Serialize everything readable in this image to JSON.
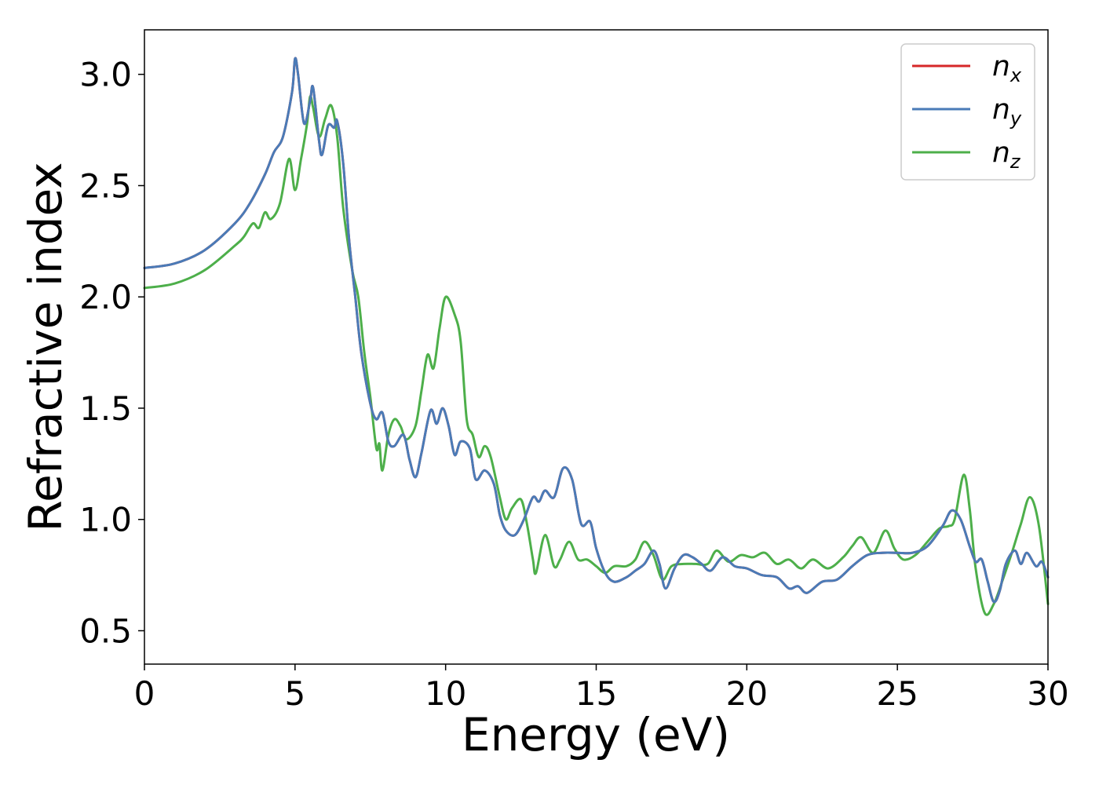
{
  "chart_data": {
    "type": "line",
    "xlabel": "Energy (eV)",
    "ylabel": "Refractive index",
    "xlim": [
      0,
      30
    ],
    "ylim": [
      0.35,
      3.2
    ],
    "xticks": [
      {
        "value": 0,
        "label": "0"
      },
      {
        "value": 5,
        "label": "5"
      },
      {
        "value": 10,
        "label": "10"
      },
      {
        "value": 15,
        "label": "15"
      },
      {
        "value": 20,
        "label": "20"
      },
      {
        "value": 25,
        "label": "25"
      },
      {
        "value": 30,
        "label": "30"
      }
    ],
    "yticks": [
      {
        "value": 0.5,
        "label": "0.5"
      },
      {
        "value": 1.0,
        "label": "1.0"
      },
      {
        "value": 1.5,
        "label": "1.5"
      },
      {
        "value": 2.0,
        "label": "2.0"
      },
      {
        "value": 2.5,
        "label": "2.5"
      },
      {
        "value": 3.0,
        "label": "3.0"
      }
    ],
    "grid": false,
    "legend_position": "top-right",
    "series": [
      {
        "name": "n_x",
        "label_main": "n",
        "label_sub": "x",
        "color": "#d62728",
        "points": [
          [
            0,
            2.13
          ],
          [
            1,
            2.15
          ],
          [
            2,
            2.21
          ],
          [
            3,
            2.33
          ],
          [
            3.5,
            2.42
          ],
          [
            4,
            2.55
          ],
          [
            4.3,
            2.65
          ],
          [
            4.6,
            2.72
          ],
          [
            4.9,
            2.92
          ],
          [
            5.0,
            3.07
          ],
          [
            5.1,
            3.0
          ],
          [
            5.3,
            2.78
          ],
          [
            5.5,
            2.88
          ],
          [
            5.6,
            2.94
          ],
          [
            5.8,
            2.7
          ],
          [
            5.9,
            2.64
          ],
          [
            6.1,
            2.77
          ],
          [
            6.3,
            2.76
          ],
          [
            6.4,
            2.79
          ],
          [
            6.6,
            2.6
          ],
          [
            6.8,
            2.25
          ],
          [
            7.0,
            2.0
          ],
          [
            7.2,
            1.75
          ],
          [
            7.5,
            1.52
          ],
          [
            7.7,
            1.45
          ],
          [
            7.9,
            1.48
          ],
          [
            8.1,
            1.35
          ],
          [
            8.3,
            1.33
          ],
          [
            8.6,
            1.38
          ],
          [
            8.8,
            1.27
          ],
          [
            9.0,
            1.19
          ],
          [
            9.2,
            1.3
          ],
          [
            9.5,
            1.49
          ],
          [
            9.7,
            1.43
          ],
          [
            9.9,
            1.5
          ],
          [
            10.1,
            1.42
          ],
          [
            10.3,
            1.29
          ],
          [
            10.5,
            1.35
          ],
          [
            10.8,
            1.32
          ],
          [
            11.0,
            1.18
          ],
          [
            11.3,
            1.22
          ],
          [
            11.6,
            1.16
          ],
          [
            11.8,
            1.02
          ],
          [
            12.0,
            0.95
          ],
          [
            12.3,
            0.93
          ],
          [
            12.6,
            1.0
          ],
          [
            12.9,
            1.1
          ],
          [
            13.1,
            1.08
          ],
          [
            13.3,
            1.13
          ],
          [
            13.6,
            1.1
          ],
          [
            13.9,
            1.23
          ],
          [
            14.2,
            1.18
          ],
          [
            14.5,
            0.98
          ],
          [
            14.8,
            0.99
          ],
          [
            15.0,
            0.87
          ],
          [
            15.3,
            0.76
          ],
          [
            15.6,
            0.72
          ],
          [
            16.0,
            0.74
          ],
          [
            16.3,
            0.77
          ],
          [
            16.6,
            0.8
          ],
          [
            16.9,
            0.86
          ],
          [
            17.1,
            0.8
          ],
          [
            17.3,
            0.69
          ],
          [
            17.6,
            0.78
          ],
          [
            17.9,
            0.84
          ],
          [
            18.2,
            0.83
          ],
          [
            18.5,
            0.8
          ],
          [
            18.8,
            0.77
          ],
          [
            19.2,
            0.83
          ],
          [
            19.6,
            0.79
          ],
          [
            20.0,
            0.78
          ],
          [
            20.5,
            0.75
          ],
          [
            21.0,
            0.74
          ],
          [
            21.4,
            0.69
          ],
          [
            21.7,
            0.7
          ],
          [
            22.0,
            0.67
          ],
          [
            22.5,
            0.72
          ],
          [
            23.0,
            0.73
          ],
          [
            23.5,
            0.79
          ],
          [
            24.0,
            0.84
          ],
          [
            24.5,
            0.85
          ],
          [
            25.0,
            0.85
          ],
          [
            25.5,
            0.85
          ],
          [
            26.0,
            0.88
          ],
          [
            26.5,
            0.97
          ],
          [
            26.8,
            1.04
          ],
          [
            27.1,
            1.0
          ],
          [
            27.4,
            0.88
          ],
          [
            27.6,
            0.81
          ],
          [
            27.8,
            0.82
          ],
          [
            28.0,
            0.72
          ],
          [
            28.2,
            0.63
          ],
          [
            28.4,
            0.68
          ],
          [
            28.6,
            0.8
          ],
          [
            28.9,
            0.86
          ],
          [
            29.1,
            0.8
          ],
          [
            29.3,
            0.85
          ],
          [
            29.6,
            0.79
          ],
          [
            29.8,
            0.81
          ],
          [
            30,
            0.74
          ]
        ]
      },
      {
        "name": "n_y",
        "label_main": "n",
        "label_sub": "y",
        "color": "#4a7bb7",
        "points": [
          [
            0,
            2.13
          ],
          [
            1,
            2.15
          ],
          [
            2,
            2.21
          ],
          [
            3,
            2.33
          ],
          [
            3.5,
            2.42
          ],
          [
            4,
            2.55
          ],
          [
            4.3,
            2.65
          ],
          [
            4.6,
            2.72
          ],
          [
            4.9,
            2.92
          ],
          [
            5.0,
            3.07
          ],
          [
            5.1,
            3.0
          ],
          [
            5.3,
            2.78
          ],
          [
            5.5,
            2.88
          ],
          [
            5.6,
            2.94
          ],
          [
            5.8,
            2.7
          ],
          [
            5.9,
            2.64
          ],
          [
            6.1,
            2.77
          ],
          [
            6.3,
            2.76
          ],
          [
            6.4,
            2.79
          ],
          [
            6.6,
            2.6
          ],
          [
            6.8,
            2.25
          ],
          [
            7.0,
            2.0
          ],
          [
            7.2,
            1.75
          ],
          [
            7.5,
            1.52
          ],
          [
            7.7,
            1.45
          ],
          [
            7.9,
            1.48
          ],
          [
            8.1,
            1.35
          ],
          [
            8.3,
            1.33
          ],
          [
            8.6,
            1.38
          ],
          [
            8.8,
            1.27
          ],
          [
            9.0,
            1.19
          ],
          [
            9.2,
            1.3
          ],
          [
            9.5,
            1.49
          ],
          [
            9.7,
            1.43
          ],
          [
            9.9,
            1.5
          ],
          [
            10.1,
            1.42
          ],
          [
            10.3,
            1.29
          ],
          [
            10.5,
            1.35
          ],
          [
            10.8,
            1.32
          ],
          [
            11.0,
            1.18
          ],
          [
            11.3,
            1.22
          ],
          [
            11.6,
            1.16
          ],
          [
            11.8,
            1.02
          ],
          [
            12.0,
            0.95
          ],
          [
            12.3,
            0.93
          ],
          [
            12.6,
            1.0
          ],
          [
            12.9,
            1.1
          ],
          [
            13.1,
            1.08
          ],
          [
            13.3,
            1.13
          ],
          [
            13.6,
            1.1
          ],
          [
            13.9,
            1.23
          ],
          [
            14.2,
            1.18
          ],
          [
            14.5,
            0.98
          ],
          [
            14.8,
            0.99
          ],
          [
            15.0,
            0.87
          ],
          [
            15.3,
            0.76
          ],
          [
            15.6,
            0.72
          ],
          [
            16.0,
            0.74
          ],
          [
            16.3,
            0.77
          ],
          [
            16.6,
            0.8
          ],
          [
            16.9,
            0.86
          ],
          [
            17.1,
            0.8
          ],
          [
            17.3,
            0.69
          ],
          [
            17.6,
            0.78
          ],
          [
            17.9,
            0.84
          ],
          [
            18.2,
            0.83
          ],
          [
            18.5,
            0.8
          ],
          [
            18.8,
            0.77
          ],
          [
            19.2,
            0.83
          ],
          [
            19.6,
            0.79
          ],
          [
            20.0,
            0.78
          ],
          [
            20.5,
            0.75
          ],
          [
            21.0,
            0.74
          ],
          [
            21.4,
            0.69
          ],
          [
            21.7,
            0.7
          ],
          [
            22.0,
            0.67
          ],
          [
            22.5,
            0.72
          ],
          [
            23.0,
            0.73
          ],
          [
            23.5,
            0.79
          ],
          [
            24.0,
            0.84
          ],
          [
            24.5,
            0.85
          ],
          [
            25.0,
            0.85
          ],
          [
            25.5,
            0.85
          ],
          [
            26.0,
            0.88
          ],
          [
            26.5,
            0.97
          ],
          [
            26.8,
            1.04
          ],
          [
            27.1,
            1.0
          ],
          [
            27.4,
            0.88
          ],
          [
            27.6,
            0.81
          ],
          [
            27.8,
            0.82
          ],
          [
            28.0,
            0.72
          ],
          [
            28.2,
            0.63
          ],
          [
            28.4,
            0.68
          ],
          [
            28.6,
            0.8
          ],
          [
            28.9,
            0.86
          ],
          [
            29.1,
            0.8
          ],
          [
            29.3,
            0.85
          ],
          [
            29.6,
            0.79
          ],
          [
            29.8,
            0.81
          ],
          [
            30,
            0.74
          ]
        ]
      },
      {
        "name": "n_z",
        "label_main": "n",
        "label_sub": "z",
        "color": "#4daf4a",
        "points": [
          [
            0,
            2.04
          ],
          [
            1,
            2.06
          ],
          [
            2,
            2.12
          ],
          [
            3,
            2.23
          ],
          [
            3.3,
            2.27
          ],
          [
            3.6,
            2.33
          ],
          [
            3.8,
            2.31
          ],
          [
            4.0,
            2.38
          ],
          [
            4.2,
            2.35
          ],
          [
            4.5,
            2.42
          ],
          [
            4.8,
            2.62
          ],
          [
            5.0,
            2.48
          ],
          [
            5.2,
            2.62
          ],
          [
            5.4,
            2.78
          ],
          [
            5.5,
            2.9
          ],
          [
            5.6,
            2.85
          ],
          [
            5.8,
            2.72
          ],
          [
            6.0,
            2.8
          ],
          [
            6.2,
            2.86
          ],
          [
            6.4,
            2.72
          ],
          [
            6.6,
            2.4
          ],
          [
            6.9,
            2.12
          ],
          [
            7.1,
            2.0
          ],
          [
            7.3,
            1.75
          ],
          [
            7.5,
            1.55
          ],
          [
            7.7,
            1.32
          ],
          [
            7.8,
            1.34
          ],
          [
            7.9,
            1.22
          ],
          [
            8.1,
            1.38
          ],
          [
            8.3,
            1.45
          ],
          [
            8.5,
            1.42
          ],
          [
            8.7,
            1.36
          ],
          [
            9.0,
            1.42
          ],
          [
            9.2,
            1.58
          ],
          [
            9.4,
            1.74
          ],
          [
            9.6,
            1.68
          ],
          [
            9.8,
            1.86
          ],
          [
            10.0,
            2.0
          ],
          [
            10.3,
            1.92
          ],
          [
            10.5,
            1.8
          ],
          [
            10.7,
            1.45
          ],
          [
            10.9,
            1.38
          ],
          [
            11.1,
            1.28
          ],
          [
            11.3,
            1.33
          ],
          [
            11.5,
            1.28
          ],
          [
            11.8,
            1.1
          ],
          [
            12.0,
            1.0
          ],
          [
            12.2,
            1.05
          ],
          [
            12.5,
            1.09
          ],
          [
            12.7,
            0.98
          ],
          [
            12.9,
            0.82
          ],
          [
            13.0,
            0.76
          ],
          [
            13.3,
            0.93
          ],
          [
            13.6,
            0.79
          ],
          [
            13.8,
            0.82
          ],
          [
            14.1,
            0.9
          ],
          [
            14.4,
            0.82
          ],
          [
            14.7,
            0.82
          ],
          [
            15.0,
            0.79
          ],
          [
            15.3,
            0.76
          ],
          [
            15.6,
            0.79
          ],
          [
            16.0,
            0.79
          ],
          [
            16.3,
            0.82
          ],
          [
            16.6,
            0.9
          ],
          [
            16.9,
            0.84
          ],
          [
            17.2,
            0.73
          ],
          [
            17.5,
            0.79
          ],
          [
            17.9,
            0.8
          ],
          [
            18.3,
            0.8
          ],
          [
            18.7,
            0.8
          ],
          [
            19.0,
            0.86
          ],
          [
            19.4,
            0.81
          ],
          [
            19.8,
            0.84
          ],
          [
            20.2,
            0.83
          ],
          [
            20.6,
            0.85
          ],
          [
            21.0,
            0.8
          ],
          [
            21.4,
            0.82
          ],
          [
            21.8,
            0.78
          ],
          [
            22.2,
            0.82
          ],
          [
            22.7,
            0.78
          ],
          [
            23.2,
            0.83
          ],
          [
            23.5,
            0.88
          ],
          [
            23.8,
            0.92
          ],
          [
            24.2,
            0.85
          ],
          [
            24.6,
            0.95
          ],
          [
            24.9,
            0.87
          ],
          [
            25.2,
            0.82
          ],
          [
            25.6,
            0.84
          ],
          [
            26.0,
            0.9
          ],
          [
            26.4,
            0.96
          ],
          [
            26.7,
            0.97
          ],
          [
            26.9,
            1.0
          ],
          [
            27.2,
            1.2
          ],
          [
            27.4,
            1.05
          ],
          [
            27.6,
            0.78
          ],
          [
            27.9,
            0.58
          ],
          [
            28.2,
            0.62
          ],
          [
            28.5,
            0.73
          ],
          [
            28.8,
            0.85
          ],
          [
            29.1,
            0.98
          ],
          [
            29.4,
            1.1
          ],
          [
            29.7,
            0.97
          ],
          [
            30,
            0.62
          ]
        ]
      }
    ]
  }
}
